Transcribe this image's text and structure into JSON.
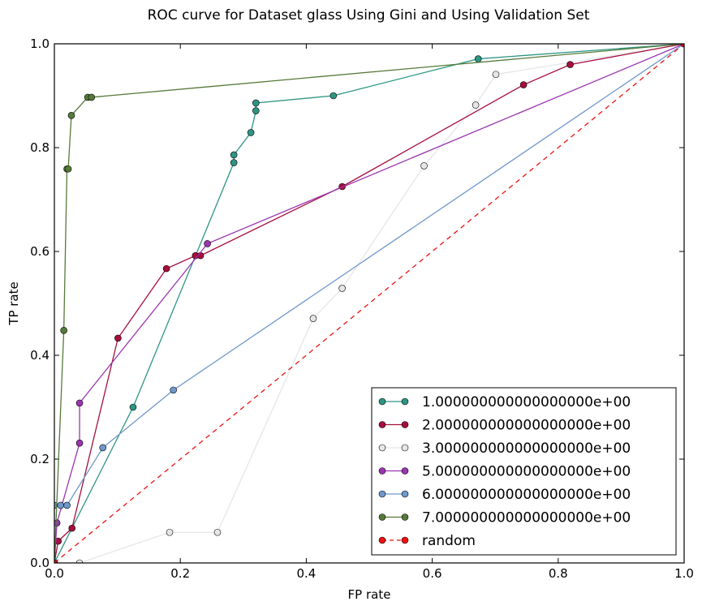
{
  "chart_data": {
    "type": "line",
    "title": "ROC curve for Dataset glass Using Gini and Using Validation Set",
    "xlabel": "FP rate",
    "ylabel": "TP rate",
    "xlim": [
      0,
      1
    ],
    "ylim": [
      0,
      1
    ],
    "xticks": [
      "0.0",
      "0.2",
      "0.4",
      "0.6",
      "0.8",
      "1.0"
    ],
    "yticks": [
      "0.0",
      "0.2",
      "0.4",
      "0.6",
      "0.8",
      "1.0"
    ],
    "grid": false,
    "legend_position": "lower-right",
    "series": [
      {
        "name": "1.000000000000000000e+00",
        "color": "#2e9584",
        "line_style": "solid",
        "points": [
          [
            0.0,
            0.0
          ],
          [
            0.125,
            0.3
          ],
          [
            0.285,
            0.771
          ],
          [
            0.285,
            0.786
          ],
          [
            0.312,
            0.829
          ],
          [
            0.32,
            0.871
          ],
          [
            0.32,
            0.886
          ],
          [
            0.443,
            0.9
          ],
          [
            0.673,
            0.971
          ],
          [
            1.0,
            1.0
          ]
        ]
      },
      {
        "name": "2.000000000000000000e+00",
        "color": "#a50f3c",
        "line_style": "solid",
        "points": [
          [
            0.0,
            0.0
          ],
          [
            0.006,
            0.042
          ],
          [
            0.028,
            0.067
          ],
          [
            0.101,
            0.433
          ],
          [
            0.178,
            0.567
          ],
          [
            0.224,
            0.592
          ],
          [
            0.232,
            0.592
          ],
          [
            0.457,
            0.725
          ],
          [
            0.745,
            0.921
          ],
          [
            0.819,
            0.96
          ],
          [
            1.0,
            1.0
          ]
        ]
      },
      {
        "name": "3.000000000000000000e+00",
        "color": "#e6e6e6",
        "line_style": "solid",
        "points": [
          [
            0.0,
            0.0
          ],
          [
            0.04,
            0.0
          ],
          [
            0.183,
            0.059
          ],
          [
            0.259,
            0.059
          ],
          [
            0.411,
            0.471
          ],
          [
            0.457,
            0.529
          ],
          [
            0.587,
            0.765
          ],
          [
            0.669,
            0.882
          ],
          [
            0.701,
            0.941
          ],
          [
            1.0,
            1.0
          ]
        ]
      },
      {
        "name": "5.000000000000000000e+00",
        "color": "#9a35b0",
        "line_style": "solid",
        "points": [
          [
            0.0,
            0.0
          ],
          [
            0.004,
            0.077
          ],
          [
            0.04,
            0.231
          ],
          [
            0.04,
            0.308
          ],
          [
            0.243,
            0.615
          ],
          [
            1.0,
            1.0
          ]
        ]
      },
      {
        "name": "6.000000000000000000e+00",
        "color": "#6f97cb",
        "line_style": "solid",
        "points": [
          [
            0.0,
            0.0
          ],
          [
            0.0,
            0.111
          ],
          [
            0.01,
            0.111
          ],
          [
            0.02,
            0.111
          ],
          [
            0.077,
            0.222
          ],
          [
            0.189,
            0.333
          ],
          [
            1.0,
            1.0
          ]
        ]
      },
      {
        "name": "7.000000000000000000e+00",
        "color": "#567a3a",
        "line_style": "solid",
        "points": [
          [
            0.0,
            0.0
          ],
          [
            0.015,
            0.448
          ],
          [
            0.02,
            0.759
          ],
          [
            0.022,
            0.759
          ],
          [
            0.027,
            0.862
          ],
          [
            0.053,
            0.897
          ],
          [
            0.059,
            0.897
          ],
          [
            1.0,
            1.0
          ]
        ]
      },
      {
        "name": "random",
        "color": "#ee1111",
        "line_style": "dashed",
        "points": [
          [
            0.0,
            0.0
          ],
          [
            1.0,
            1.0
          ]
        ]
      }
    ]
  }
}
